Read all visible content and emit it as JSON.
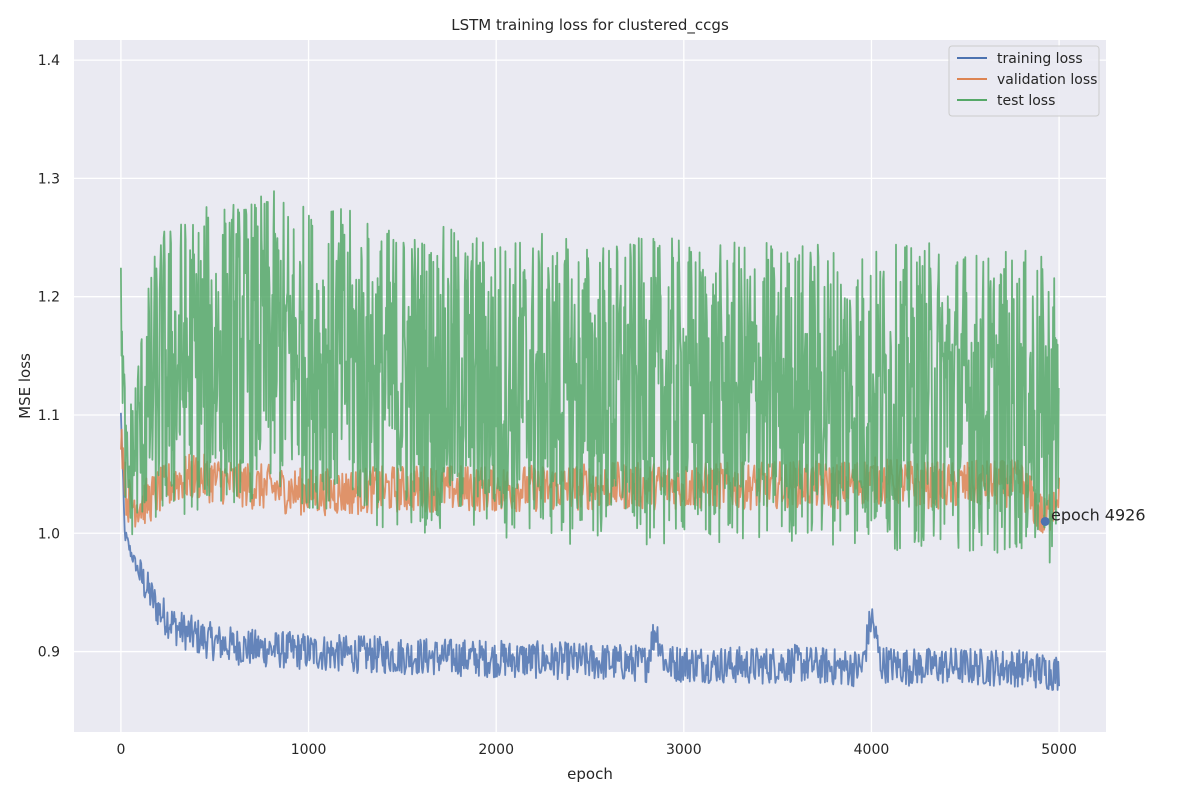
{
  "chart_data": {
    "type": "line",
    "title": "LSTM training loss for clustered_ccgs",
    "xlabel": "epoch",
    "ylabel": "MSE loss",
    "xlim": [
      -250,
      5250
    ],
    "ylim": [
      0.832,
      1.417
    ],
    "xticks": [
      0,
      1000,
      2000,
      3000,
      4000,
      5000
    ],
    "xtick_labels": [
      "0",
      "1000",
      "2000",
      "3000",
      "4000",
      "5000"
    ],
    "yticks": [
      0.9,
      1.0,
      1.1,
      1.2,
      1.3,
      1.4
    ],
    "ytick_labels": [
      "0.9",
      "1.0",
      "1.1",
      "1.2",
      "1.3",
      "1.4"
    ],
    "grid": true,
    "legend_position": "top-right",
    "background": "#eaeaf2",
    "series": [
      {
        "name": "training loss",
        "color": "#4c72b0",
        "x": [
          0,
          20,
          50,
          100,
          150,
          200,
          300,
          400,
          500,
          600,
          700,
          800,
          1000,
          1200,
          1400,
          1600,
          1800,
          2000,
          2200,
          2400,
          2600,
          2800,
          2850,
          2900,
          3000,
          3200,
          3400,
          3600,
          3800,
          3950,
          4000,
          4050,
          4200,
          4400,
          4600,
          4800,
          5000
        ],
        "values": [
          1.1,
          1.0,
          0.985,
          0.965,
          0.95,
          0.935,
          0.92,
          0.913,
          0.908,
          0.905,
          0.903,
          0.902,
          0.9,
          0.898,
          0.897,
          0.896,
          0.895,
          0.894,
          0.893,
          0.892,
          0.891,
          0.89,
          0.92,
          0.89,
          0.89,
          0.889,
          0.888,
          0.89,
          0.887,
          0.886,
          0.93,
          0.89,
          0.887,
          0.888,
          0.887,
          0.886,
          0.882
        ]
      },
      {
        "name": "validation loss",
        "color": "#dd8452",
        "x": [
          0,
          30,
          60,
          100,
          150,
          200,
          250,
          300,
          400,
          500,
          600,
          700,
          800,
          900,
          1000,
          1200,
          1400,
          1600,
          1800,
          2000,
          2200,
          2400,
          2600,
          2800,
          3000,
          3200,
          3400,
          3600,
          3800,
          4000,
          4200,
          4400,
          4600,
          4800,
          4926,
          5000
        ],
        "values": [
          1.09,
          1.03,
          1.025,
          1.025,
          1.028,
          1.035,
          1.04,
          1.045,
          1.048,
          1.045,
          1.043,
          1.04,
          1.038,
          1.036,
          1.035,
          1.035,
          1.037,
          1.038,
          1.038,
          1.038,
          1.038,
          1.039,
          1.04,
          1.04,
          1.04,
          1.04,
          1.04,
          1.042,
          1.04,
          1.045,
          1.042,
          1.04,
          1.042,
          1.042,
          1.01,
          1.04
        ]
      },
      {
        "name": "test loss",
        "color": "#55a868",
        "x": [
          0,
          30,
          60,
          100,
          150,
          200,
          300,
          400,
          500,
          600,
          700,
          800,
          900,
          1000,
          1100,
          1200,
          1300,
          1400,
          1500,
          1600,
          1800,
          2000,
          2200,
          2400,
          2600,
          2800,
          3000,
          3200,
          3400,
          3600,
          3800,
          4000,
          4200,
          4400,
          4600,
          4800,
          5000
        ],
        "values": [
          1.19,
          1.04,
          1.06,
          1.09,
          1.11,
          1.13,
          1.14,
          1.145,
          1.15,
          1.155,
          1.155,
          1.16,
          1.155,
          1.15,
          1.15,
          1.145,
          1.14,
          1.13,
          1.135,
          1.13,
          1.13,
          1.125,
          1.125,
          1.12,
          1.12,
          1.12,
          1.12,
          1.115,
          1.12,
          1.12,
          1.12,
          1.115,
          1.115,
          1.12,
          1.11,
          1.11,
          1.1
        ]
      }
    ],
    "marker": {
      "x": 4926,
      "y": 1.01,
      "color": "#4c72b0"
    },
    "annotation": {
      "text": "epoch 4926",
      "x": 5170,
      "y": 1.01
    }
  }
}
